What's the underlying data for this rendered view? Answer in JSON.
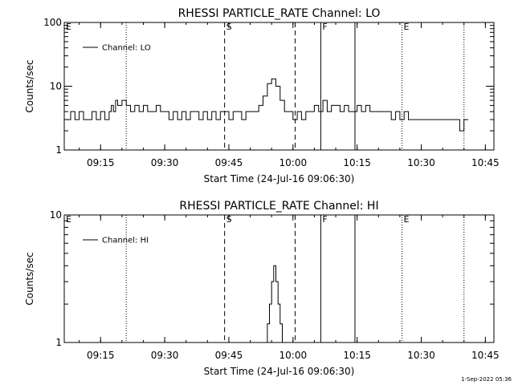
{
  "chart_data": [
    {
      "type": "line",
      "title": "RHESSI PARTICLE_RATE Channel: LO",
      "xlabel": "Start Time (24-Jul-16 09:06:30)",
      "ylabel": "Counts/sec",
      "y_scale": "log",
      "ylim": [
        1,
        100
      ],
      "y_ticks": [
        {
          "v": 1,
          "label": "1"
        },
        {
          "v": 10,
          "label": "10"
        },
        {
          "v": 100,
          "label": "100"
        }
      ],
      "xlim": [
        "09:06:30",
        "10:47:00"
      ],
      "x_ticks": [
        "09:15",
        "09:30",
        "09:45",
        "10:00",
        "10:15",
        "10:30",
        "10:45"
      ],
      "legend": {
        "position": "top-left",
        "entries": [
          "Channel: LO"
        ]
      },
      "series": [
        {
          "name": "Channel: LO",
          "x": [
            "09:07",
            "09:08",
            "09:09",
            "09:10",
            "09:11",
            "09:12",
            "09:13",
            "09:14",
            "09:15",
            "09:16",
            "09:17",
            "09:17:30",
            "09:18",
            "09:18:30",
            "09:19",
            "09:20",
            "09:21",
            "09:22",
            "09:23",
            "09:24",
            "09:25",
            "09:26",
            "09:27",
            "09:28",
            "09:29",
            "09:30",
            "09:31",
            "09:32",
            "09:33",
            "09:34",
            "09:35",
            "09:36",
            "09:37",
            "09:38",
            "09:39",
            "09:40",
            "09:41",
            "09:42",
            "09:43",
            "09:44",
            "09:45",
            "09:46",
            "09:47",
            "09:48",
            "09:49",
            "09:50",
            "09:51",
            "09:52",
            "09:53",
            "09:54",
            "09:55",
            "09:56",
            "09:57",
            "09:58",
            "09:59",
            "10:00",
            "10:01",
            "10:02",
            "10:03",
            "10:04",
            "10:05",
            "10:06",
            "10:07",
            "10:08",
            "10:09",
            "10:10",
            "10:11",
            "10:12",
            "10:13",
            "10:14",
            "10:15",
            "10:16",
            "10:17",
            "10:18",
            "10:19",
            "10:20",
            "10:21",
            "10:22",
            "10:23",
            "10:24",
            "10:25",
            "10:26",
            "10:27",
            "10:28",
            "10:29",
            "10:30",
            "10:32",
            "10:34",
            "10:36",
            "10:37",
            "10:38",
            "10:39",
            "10:40",
            "10:41"
          ],
          "values": [
            3,
            4,
            3,
            4,
            3,
            3,
            4,
            3,
            4,
            3,
            4,
            5,
            4,
            6,
            5,
            6,
            5,
            4,
            5,
            4,
            5,
            4,
            4,
            5,
            4,
            4,
            3,
            4,
            3,
            4,
            3,
            4,
            4,
            3,
            4,
            3,
            4,
            3,
            4,
            4,
            3,
            4,
            4,
            3,
            4,
            4,
            4,
            5,
            7,
            11,
            13,
            10,
            6,
            4,
            4,
            3,
            4,
            3,
            4,
            4,
            5,
            4,
            6,
            4,
            5,
            5,
            4,
            5,
            4,
            4,
            5,
            4,
            5,
            4,
            4,
            4,
            4,
            4,
            3,
            4,
            3,
            4,
            3,
            3,
            3,
            3,
            3,
            3,
            3,
            3,
            3,
            2,
            3,
            3
          ]
        }
      ],
      "annotations": [
        {
          "time": "09:06:30",
          "style": "dotted",
          "label": "E"
        },
        {
          "time": "09:21:00",
          "style": "dotted",
          "label": ""
        },
        {
          "time": "09:44:00",
          "style": "dashed",
          "label": "S"
        },
        {
          "time": "10:00:30",
          "style": "dashed",
          "label": ""
        },
        {
          "time": "10:06:30",
          "style": "solid",
          "label": "F"
        },
        {
          "time": "10:14:30",
          "style": "solid",
          "label": ""
        },
        {
          "time": "10:25:30",
          "style": "dotted",
          "label": "E"
        },
        {
          "time": "10:40:00",
          "style": "dotted",
          "label": ""
        }
      ]
    },
    {
      "type": "line",
      "title": "RHESSI PARTICLE_RATE Channel: HI",
      "xlabel": "Start Time (24-Jul-16 09:06:30)",
      "ylabel": "Counts/sec",
      "y_scale": "log",
      "ylim": [
        1,
        10
      ],
      "y_ticks": [
        {
          "v": 1,
          "label": "1"
        },
        {
          "v": 10,
          "label": "10"
        }
      ],
      "xlim": [
        "09:06:30",
        "10:47:00"
      ],
      "x_ticks": [
        "09:15",
        "09:30",
        "09:45",
        "10:00",
        "10:15",
        "10:30",
        "10:45"
      ],
      "legend": {
        "position": "top-left",
        "entries": [
          "Channel: HI"
        ]
      },
      "series": [
        {
          "name": "Channel: HI",
          "x": [
            "09:53:30",
            "09:54:00",
            "09:54:30",
            "09:55:00",
            "09:55:30",
            "09:56:00",
            "09:56:30",
            "09:57:00",
            "09:57:30"
          ],
          "values": [
            1,
            1.4,
            2,
            3,
            4,
            3,
            2,
            1.4,
            1
          ]
        }
      ],
      "annotations": [
        {
          "time": "09:06:30",
          "style": "dotted",
          "label": "E"
        },
        {
          "time": "09:21:00",
          "style": "dotted",
          "label": ""
        },
        {
          "time": "09:44:00",
          "style": "dashed",
          "label": "S"
        },
        {
          "time": "10:00:30",
          "style": "dashed",
          "label": ""
        },
        {
          "time": "10:06:30",
          "style": "solid",
          "label": "F"
        },
        {
          "time": "10:14:30",
          "style": "solid",
          "label": ""
        },
        {
          "time": "10:25:30",
          "style": "dotted",
          "label": "E"
        },
        {
          "time": "10:40:00",
          "style": "dotted",
          "label": ""
        }
      ]
    }
  ],
  "footer": {
    "stamp": "1-Sep-2022 05:36"
  }
}
